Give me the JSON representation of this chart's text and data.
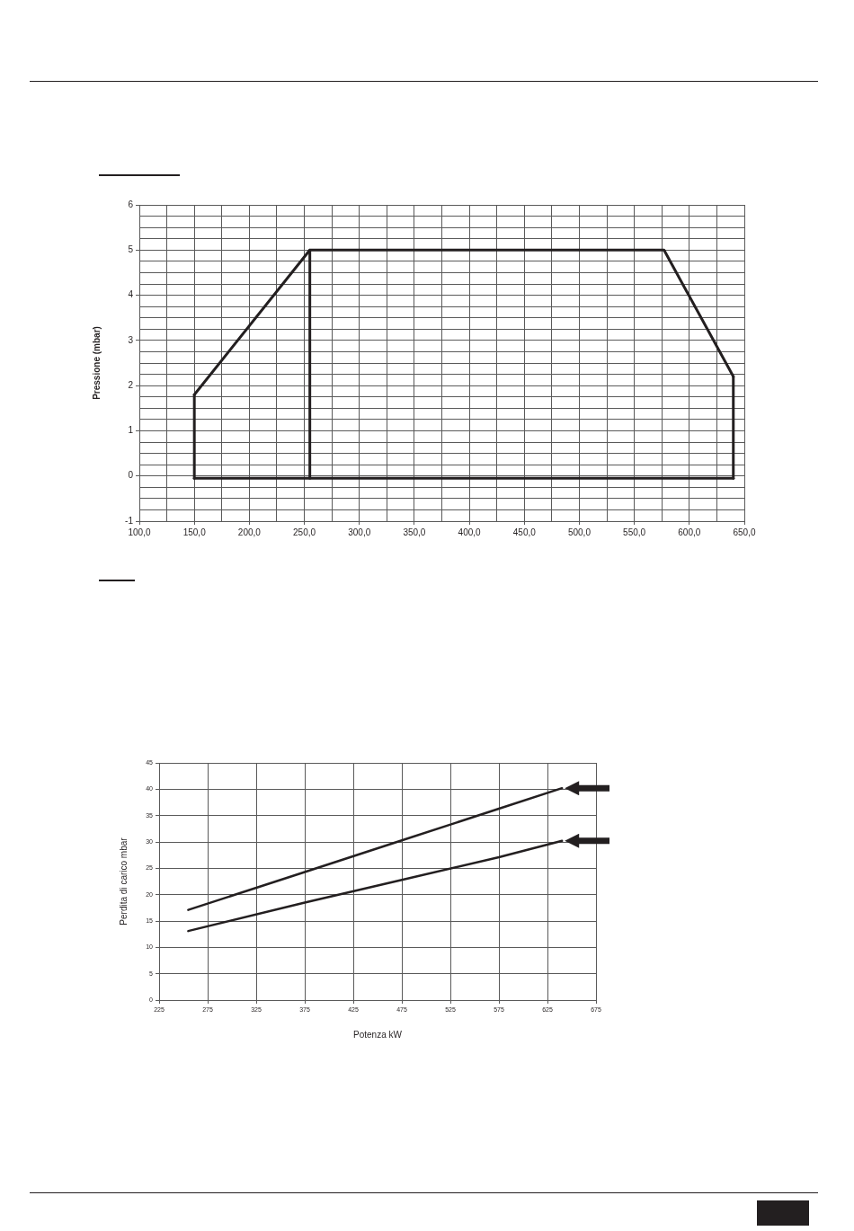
{
  "chart_data": [
    {
      "type": "line",
      "ylabel": "Pressione (mbar)",
      "xlim": [
        100,
        650
      ],
      "ylim": [
        -1,
        6
      ],
      "xticks": [
        {
          "value": 100,
          "label": "100,0"
        },
        {
          "value": 125,
          "label": null
        },
        {
          "value": 150,
          "label": "150,0"
        },
        {
          "value": 175,
          "label": null
        },
        {
          "value": 200,
          "label": "200,0"
        },
        {
          "value": 225,
          "label": null
        },
        {
          "value": 250,
          "label": "250,0"
        },
        {
          "value": 275,
          "label": null
        },
        {
          "value": 300,
          "label": "300,0"
        },
        {
          "value": 325,
          "label": null
        },
        {
          "value": 350,
          "label": "350,0"
        },
        {
          "value": 375,
          "label": null
        },
        {
          "value": 400,
          "label": "400,0"
        },
        {
          "value": 425,
          "label": null
        },
        {
          "value": 450,
          "label": "450,0"
        },
        {
          "value": 475,
          "label": null
        },
        {
          "value": 500,
          "label": "500,0"
        },
        {
          "value": 525,
          "label": null
        },
        {
          "value": 550,
          "label": "550,0"
        },
        {
          "value": 575,
          "label": null
        },
        {
          "value": 600,
          "label": "600,0"
        },
        {
          "value": 625,
          "label": null
        },
        {
          "value": 650,
          "label": "650,0"
        }
      ],
      "yticks": [
        -1,
        {
          "value": -0.75,
          "label": null
        },
        {
          "value": -0.5,
          "label": null
        },
        {
          "value": -0.25,
          "label": null
        },
        0,
        {
          "value": 0.25,
          "label": null
        },
        {
          "value": 0.5,
          "label": null
        },
        {
          "value": 0.75,
          "label": null
        },
        1,
        {
          "value": 1.25,
          "label": null
        },
        {
          "value": 1.5,
          "label": null
        },
        {
          "value": 1.75,
          "label": null
        },
        2,
        {
          "value": 2.25,
          "label": null
        },
        {
          "value": 2.5,
          "label": null
        },
        {
          "value": 2.75,
          "label": null
        },
        3,
        {
          "value": 3.25,
          "label": null
        },
        {
          "value": 3.5,
          "label": null
        },
        {
          "value": 3.75,
          "label": null
        },
        4,
        {
          "value": 4.25,
          "label": null
        },
        {
          "value": 4.5,
          "label": null
        },
        {
          "value": 4.75,
          "label": null
        },
        5,
        {
          "value": 5.25,
          "label": null
        },
        {
          "value": 5.5,
          "label": null
        },
        {
          "value": 5.75,
          "label": null
        },
        6
      ],
      "grid": true,
      "legend": false,
      "marker": "none",
      "series": [
        {
          "color": "#231f20",
          "x": [
            150,
            255,
            577,
            640
          ],
          "values": [
            1.8,
            5,
            5,
            2.2
          ]
        },
        {
          "color": "#231f20",
          "x": [
            150,
            640
          ],
          "values": [
            -0.05,
            -0.05
          ]
        },
        {
          "color": "#231f20",
          "x": [
            150,
            150
          ],
          "values": [
            -0.05,
            1.8
          ]
        },
        {
          "color": "#231f20",
          "x": [
            255,
            255
          ],
          "values": [
            -0.05,
            5
          ]
        },
        {
          "color": "#231f20",
          "x": [
            640,
            640
          ],
          "values": [
            -0.05,
            2.2
          ]
        }
      ]
    },
    {
      "type": "line",
      "xlabel": "Potenza kW",
      "ylabel": "Perdita di carico mbar",
      "xlim": [
        225,
        675
      ],
      "ylim": [
        0,
        45
      ],
      "xticks": [
        225,
        275,
        325,
        375,
        425,
        475,
        525,
        575,
        625,
        675
      ],
      "yticks": [
        0,
        5,
        10,
        15,
        20,
        25,
        30,
        35,
        40,
        45
      ],
      "grid": true,
      "legend": false,
      "marker": "none",
      "series": [
        {
          "color": "#231f20",
          "x": [
            255,
            375,
            475,
            575,
            640
          ],
          "values": [
            17.1,
            24.3,
            30.3,
            36.3,
            40.2
          ]
        },
        {
          "color": "#231f20",
          "x": [
            255,
            375,
            475,
            575,
            640
          ],
          "values": [
            13.1,
            18.5,
            22.8,
            27.1,
            30.2
          ]
        }
      ]
    }
  ]
}
